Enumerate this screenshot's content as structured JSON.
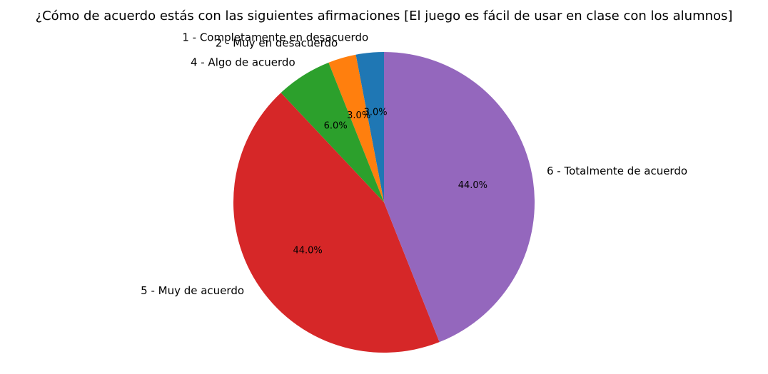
{
  "chart_data": {
    "type": "pie",
    "title": "¿Cómo de acuerdo estás con las siguientes afirmaciones [El juego es fácil de usar en clase con los alumnos]",
    "categories": [
      "1 - Completamente en desacuerdo",
      "2 - Muy en desacuerdo",
      "4 - Algo de acuerdo",
      "5 - Muy de acuerdo",
      "6 - Totalmente de acuerdo"
    ],
    "values": [
      3.0,
      3.0,
      6.0,
      44.0,
      44.0
    ],
    "percent_labels": [
      "3.0%",
      "3.0%",
      "6.0%",
      "44.0%",
      "44.0%"
    ],
    "colors": [
      "#1f77b4",
      "#ff7f0e",
      "#2ca02c",
      "#d62728",
      "#9467bd"
    ],
    "start_angle_deg": 90,
    "direction": "counterclockwise"
  }
}
